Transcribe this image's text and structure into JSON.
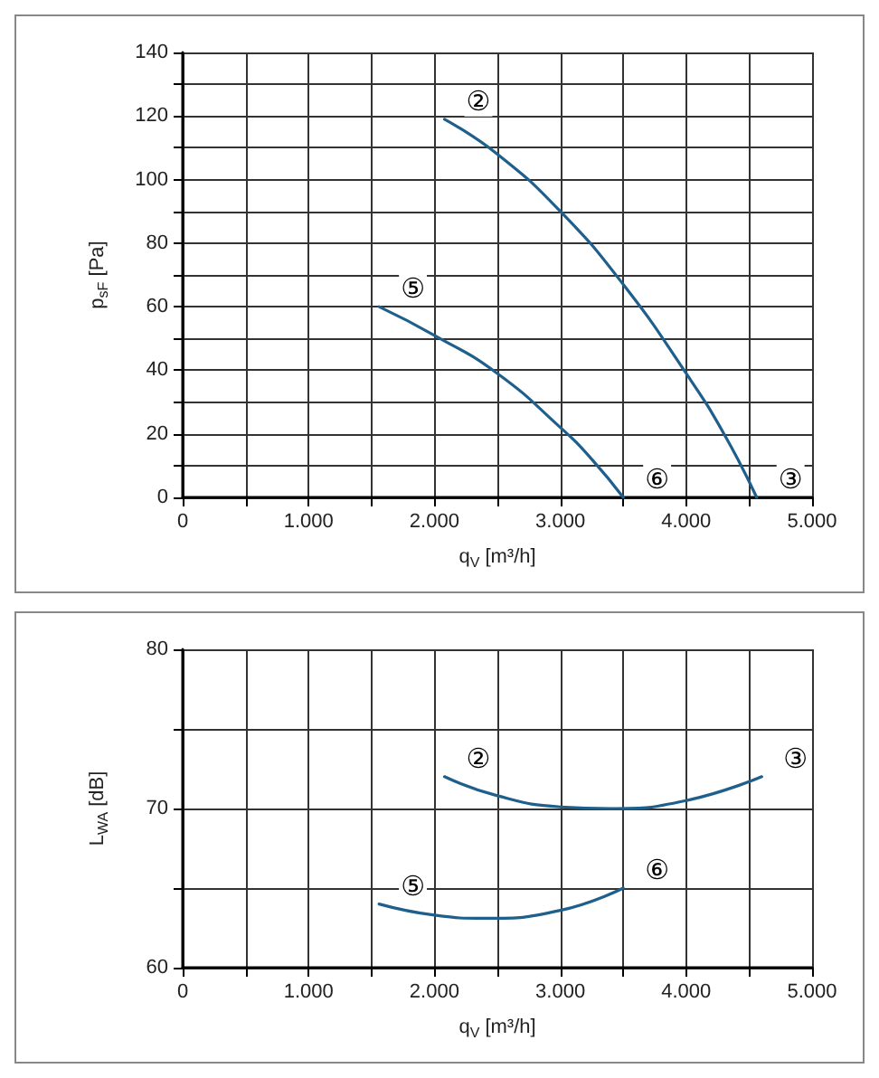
{
  "chart_data": [
    {
      "type": "line",
      "xlabel": "q$_{V}$ [m³/h]",
      "ylabel": "p$_{sF}$ [Pa]",
      "xlim": [
        0,
        5000
      ],
      "ylim": [
        0,
        140
      ],
      "xticks": [
        0,
        {
          "value": 500,
          "label": null
        },
        {
          "value": 1000,
          "label": "1.000"
        },
        {
          "value": 1500,
          "label": null
        },
        {
          "value": 2000,
          "label": "2.000"
        },
        {
          "value": 2500,
          "label": null
        },
        {
          "value": 3000,
          "label": "3.000"
        },
        {
          "value": 3500,
          "label": null
        },
        {
          "value": 4000,
          "label": "4.000"
        },
        {
          "value": 4500,
          "label": null
        },
        {
          "value": 5000,
          "label": "5.000"
        }
      ],
      "yticks": [
        0,
        {
          "value": 10,
          "label": null
        },
        20,
        {
          "value": 30,
          "label": null
        },
        40,
        {
          "value": 50,
          "label": null
        },
        60,
        {
          "value": 70,
          "label": null
        },
        80,
        {
          "value": 90,
          "label": null
        },
        100,
        {
          "value": 110,
          "label": null
        },
        120,
        {
          "value": 130,
          "label": null
        },
        140
      ],
      "grid": true,
      "marker": "none",
      "line_style": "solid",
      "series": [
        {
          "color": "#1f5f8b",
          "x": [
            2080,
            2500,
            3000,
            3500,
            4000,
            4300,
            4560
          ],
          "values": [
            119,
            108,
            90,
            67,
            39,
            20,
            0
          ]
        },
        {
          "color": "#1f5f8b",
          "x": [
            1560,
            2000,
            2500,
            3000,
            3250,
            3500
          ],
          "values": [
            60,
            51,
            39,
            22,
            12,
            0
          ]
        }
      ],
      "annotations": [
        {
          "text": "②",
          "x": 2080,
          "y": 119
        },
        {
          "text": "③",
          "x": 4560,
          "y": 0
        },
        {
          "text": "⑤",
          "x": 1560,
          "y": 60
        },
        {
          "text": "⑥",
          "x": 3500,
          "y": 0
        }
      ]
    },
    {
      "type": "line",
      "xlabel": "q$_{V}$ [m³/h]",
      "ylabel": "L$_{WA}$ [dB]",
      "xlim": [
        0,
        5000
      ],
      "ylim": [
        60,
        80
      ],
      "xticks": [
        0,
        {
          "value": 500,
          "label": null
        },
        {
          "value": 1000,
          "label": "1.000"
        },
        {
          "value": 1500,
          "label": null
        },
        {
          "value": 2000,
          "label": "2.000"
        },
        {
          "value": 2500,
          "label": null
        },
        {
          "value": 3000,
          "label": "3.000"
        },
        {
          "value": 3500,
          "label": null
        },
        {
          "value": 4000,
          "label": "4.000"
        },
        {
          "value": 4500,
          "label": null
        },
        {
          "value": 5000,
          "label": "5.000"
        }
      ],
      "yticks": [
        60,
        {
          "value": 65,
          "label": null
        },
        70,
        {
          "value": 75,
          "label": null
        },
        80
      ],
      "grid": true,
      "marker": "none",
      "line_style": "solid",
      "series": [
        {
          "color": "#1f5f8b",
          "x": [
            2080,
            2500,
            3000,
            3400,
            4000,
            4600
          ],
          "values": [
            72,
            70.8,
            70.1,
            70,
            70.5,
            72
          ]
        },
        {
          "color": "#1f5f8b",
          "x": [
            1560,
            2000,
            2400,
            3000,
            3500
          ],
          "values": [
            64,
            63.3,
            63.1,
            63.6,
            65
          ]
        }
      ],
      "annotations": [
        {
          "text": "②",
          "x": 2080,
          "y": 72
        },
        {
          "text": "③",
          "x": 4600,
          "y": 72
        },
        {
          "text": "⑤",
          "x": 1560,
          "y": 64
        },
        {
          "text": "⑥",
          "x": 3500,
          "y": 65
        }
      ]
    }
  ]
}
